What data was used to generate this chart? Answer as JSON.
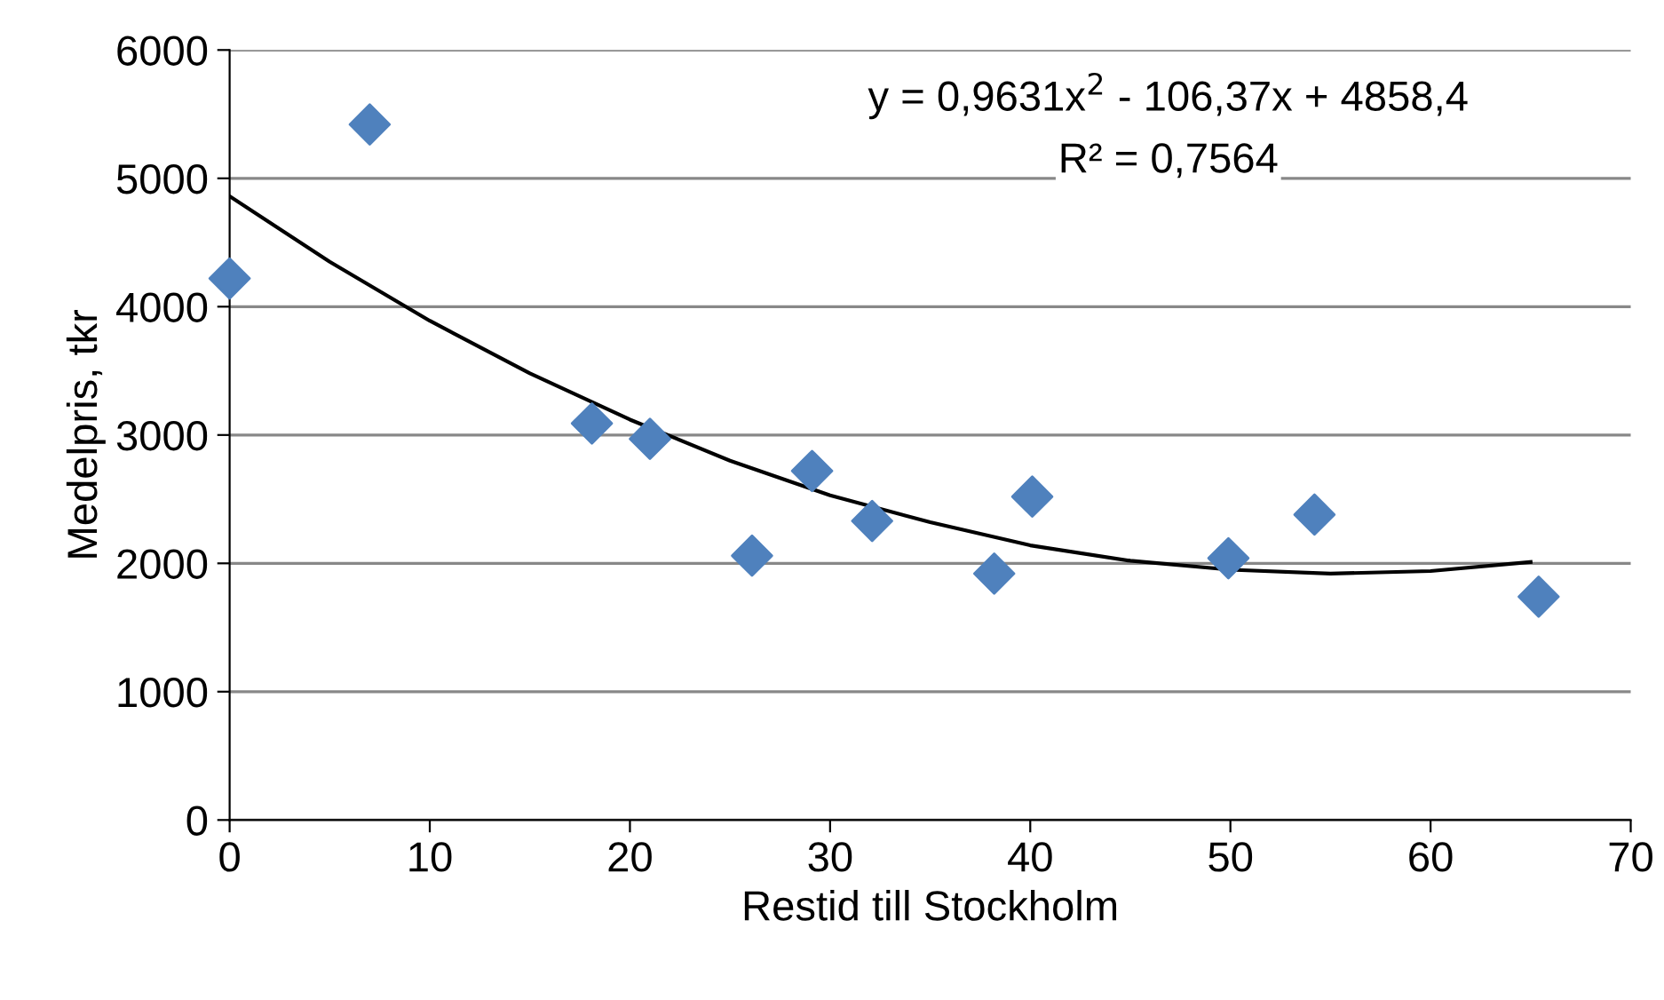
{
  "chart_data": {
    "type": "scatter",
    "xlabel": "Restid till Stockholm",
    "ylabel": "Medelpris, tkr",
    "xlim": [
      0,
      70
    ],
    "xticks": [
      0,
      10,
      20,
      30,
      40,
      50,
      60,
      70
    ],
    "ylim": [
      0,
      6000
    ],
    "yticks": [
      0,
      1000,
      2000,
      3000,
      4000,
      5000,
      6000
    ],
    "grid": "y",
    "marker": "diamond",
    "legend": false,
    "series": [
      {
        "color": "#4f81bd",
        "x": [
          0,
          7,
          18.1,
          21,
          26.1,
          29.1,
          32.1,
          38.2,
          40.1,
          49.9,
          54.2,
          65.4
        ],
        "values": [
          4220,
          5420,
          3090,
          2970,
          2060,
          2720,
          2330,
          1920,
          2520,
          2040,
          2380,
          1740
        ]
      },
      {
        "type": "line",
        "color": "#000000",
        "marker": "none",
        "x": [
          0,
          5,
          10,
          15,
          20,
          25,
          30,
          35,
          40,
          45,
          50,
          55,
          60,
          65
        ],
        "values": [
          4860,
          4350,
          3890,
          3480,
          3120,
          2800,
          2530,
          2320,
          2140,
          2020,
          1950,
          1920,
          1940,
          2010
        ]
      }
    ],
    "annotations": [
      "y = 0,9631x$^{2}$ - 106,37x + 4858,4",
      "R² = 0,7564"
    ]
  }
}
